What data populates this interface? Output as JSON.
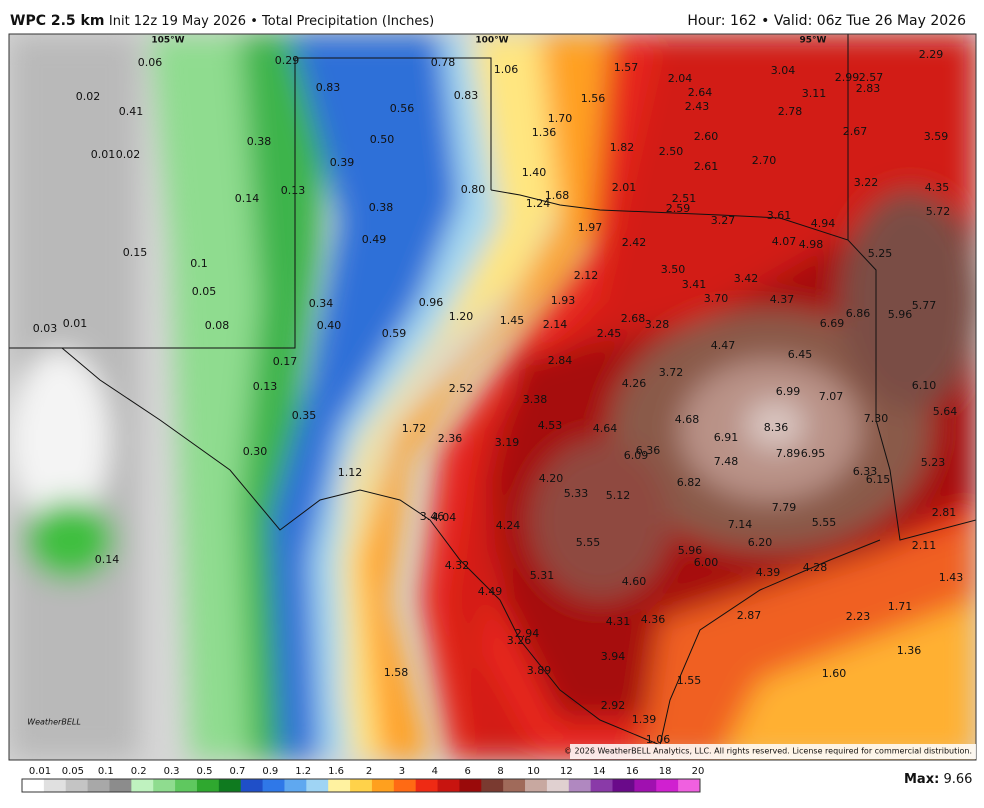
{
  "header": {
    "model": "WPC 2.5 km",
    "run": "Init 12z 19 May 2026 • Total Precipitation (Inches)",
    "valid": "Hour: 162 • Valid: 06z Tue 26 May 2026"
  },
  "longitudes": [
    "105°W",
    "100°W",
    "95°W"
  ],
  "labels": [
    "0.06",
    "0.29",
    "0.78",
    "1.06",
    "1.57",
    "2.04",
    "3.04",
    "2.99",
    "2.57",
    "2.29",
    "0.02",
    "0.83",
    "0.83",
    "1.56",
    "2.64",
    "2.43",
    "3.11",
    "2.83",
    "0.41",
    "0.56",
    "1.70",
    "2.78",
    "2.67",
    "3.59",
    "0.38",
    "0.50",
    "1.36",
    "1.82",
    "2.60",
    "0.01",
    "0.02",
    "2.50",
    "2.70",
    "0.39",
    "2.61",
    "1.40",
    "0.13",
    "0.80",
    "2.01",
    "3.22",
    "4.35",
    "0.14",
    "1.68",
    "2.51",
    "1.24",
    "2.59",
    "0.38",
    "3.27",
    "3.61",
    "4.94",
    "5.72",
    "1.97",
    "0.49",
    "2.42",
    "4.07",
    "4.98",
    "0.15",
    "0.1",
    "5.25",
    "3.50",
    "2.12",
    "3.41",
    "3.42",
    "0.05",
    "3.70",
    "4.37",
    "0.34",
    "0.96",
    "1.93",
    "5.77",
    "6.86",
    "5.96",
    "0.03",
    "0.01",
    "0.08",
    "0.40",
    "1.20",
    "1.45",
    "2.14",
    "2.68",
    "3.28",
    "6.69",
    "0.59",
    "2.45",
    "4.47",
    "0.17",
    "2.84",
    "6.45",
    "3.72",
    "4.26",
    "6.10",
    "0.13",
    "2.52",
    "6.99",
    "7.07",
    "3.38",
    "5.64",
    "0.35",
    "4.68",
    "7.30",
    "1.72",
    "4.53",
    "4.64",
    "8.36",
    "2.36",
    "6.91",
    "3.19",
    "6.36",
    "6.09",
    "7.89",
    "6.95",
    "0.30",
    "7.48",
    "5.23",
    "6.33",
    "6.15",
    "1.12",
    "4.20",
    "6.82",
    "5.33",
    "5.12",
    "7.79",
    "3.46",
    "4.04",
    "2.81",
    "4.24",
    "7.14",
    "5.55",
    "5.55",
    "6.20",
    "2.11",
    "0.14",
    "5.96",
    "6.00",
    "4.32",
    "4.39",
    "4.28",
    "1.43",
    "5.31",
    "4.60",
    "4.49",
    "1.71",
    "2.87",
    "2.23",
    "4.31",
    "4.36",
    "2.94",
    "3.26",
    "1.36",
    "1.58",
    "3.94",
    "3.89",
    "1.60",
    "1.55",
    "2.92",
    "1.39",
    "1.06"
  ],
  "logo": "WeatherBELL",
  "copyright": "© 2026 WeatherBELL Analytics, LLC. All rights reserved. License required for commercial distribution.",
  "legend": {
    "ticks": [
      "0.01",
      "0.05",
      "0.1",
      "0.2",
      "0.3",
      "0.5",
      "0.7",
      "0.9",
      "1.2",
      "1.6",
      "2",
      "3",
      "4",
      "6",
      "8",
      "10",
      "12",
      "14",
      "16",
      "18",
      "20"
    ],
    "max_label": "Max:",
    "max_value": "9.66"
  }
}
